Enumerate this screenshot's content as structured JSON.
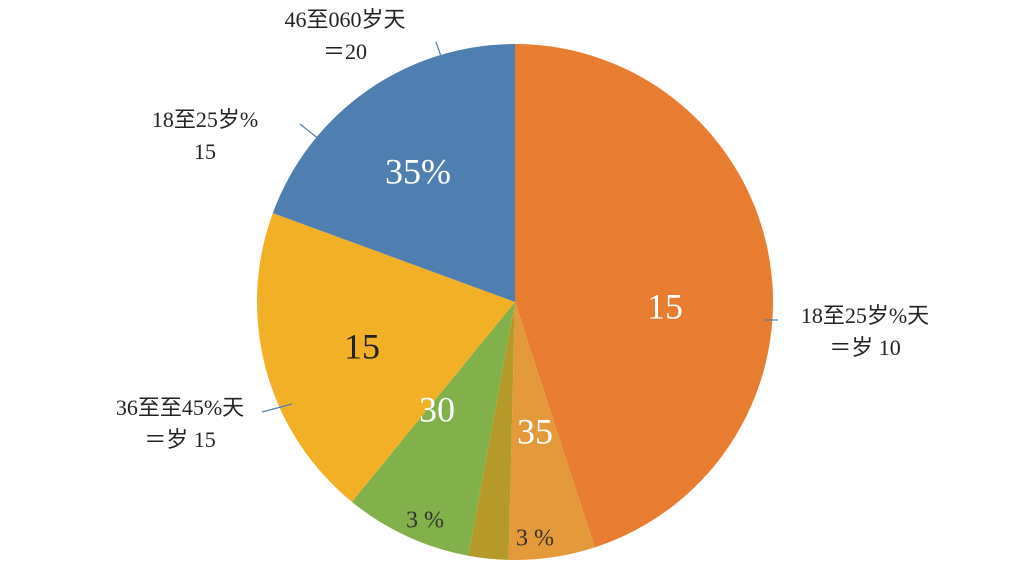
{
  "chart_data": {
    "type": "pie",
    "slices": [
      {
        "value": 45,
        "color": "#e87c30",
        "labels": [
          [
            "18至25岁%天",
            "＝岁 10"
          ]
        ],
        "inner_labels": [
          "15"
        ]
      },
      {
        "value": 5.4,
        "color": "#e49a3a",
        "inner_labels": [
          "35",
          "3 %"
        ]
      },
      {
        "value": 2.5,
        "color": "#b59a2a"
      },
      {
        "value": 8,
        "color": "#82b04a",
        "inner_labels": [
          "30",
          "3 %"
        ]
      },
      {
        "value": 19.7,
        "color": "#f1b025",
        "labels": [
          [
            "36至至45%天",
            "＝岁 15"
          ]
        ],
        "inner_labels": [
          "15"
        ]
      },
      {
        "value": 19.4,
        "color": "#4f7fb0",
        "labels": [
          [
            "18至25岁%",
            "15"
          ],
          [
            "46至060岁天",
            "＝20"
          ]
        ],
        "inner_labels": [
          "35%"
        ]
      }
    ]
  }
}
